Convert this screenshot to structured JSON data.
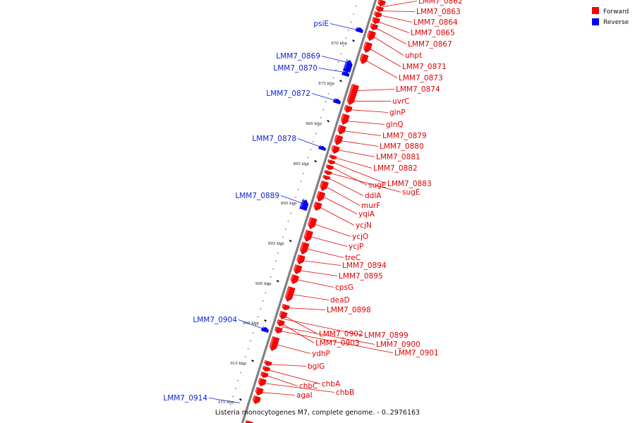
{
  "caption": "Listeria monocytogenes M7, complete genome. - 0..2976163",
  "legend": {
    "forward": {
      "label": "Forward",
      "color": "#ff0000"
    },
    "reverse": {
      "label": "Reverse",
      "color": "#0000ff"
    }
  },
  "colors": {
    "backbone": "#808080",
    "forward_label": "#e00000",
    "reverse_label": "#0a1fd0",
    "tick": "#000000"
  },
  "kbp_ticks": [
    "870 kbp",
    "875 kbp",
    "880 kbp",
    "885 kbp",
    "890 kbp",
    "895 kbp",
    "900 kbp",
    "905 kbp",
    "910 kbp",
    "915 kbp"
  ],
  "forward_genes": [
    "LMM7_0862",
    "LMM7_0863",
    "LMM7_0864",
    "LMM7_0865",
    "LMM7_0867",
    "uhpt",
    "LMM7_0871",
    "LMM7_0873",
    "LMM7_0874",
    "uvrC",
    "glnP",
    "glnQ",
    "LMM7_0879",
    "LMM7_0880",
    "LMM7_0881",
    "LMM7_0882",
    "LMM7_0883",
    "sugE",
    "sugE",
    "ddlA",
    "murF",
    "yqiA",
    "ycjN",
    "ycjO",
    "ycjP",
    "treC",
    "LMM7_0894",
    "LMM7_0895",
    "cpsG",
    "deaD",
    "LMM7_0898",
    "LMM7_0902",
    "LMM7_0899",
    "LMM7_0903",
    "LMM7_0900",
    "LMM7_0901",
    "ydhP",
    "bglG",
    "chbA",
    "chbC",
    "chbB",
    "agaI"
  ],
  "reverse_genes": [
    "psiE",
    "LMM7_0869",
    "LMM7_0870",
    "LMM7_0872",
    "LMM7_0878",
    "LMM7_0889",
    "LMM7_0904",
    "LMM7_0914"
  ]
}
